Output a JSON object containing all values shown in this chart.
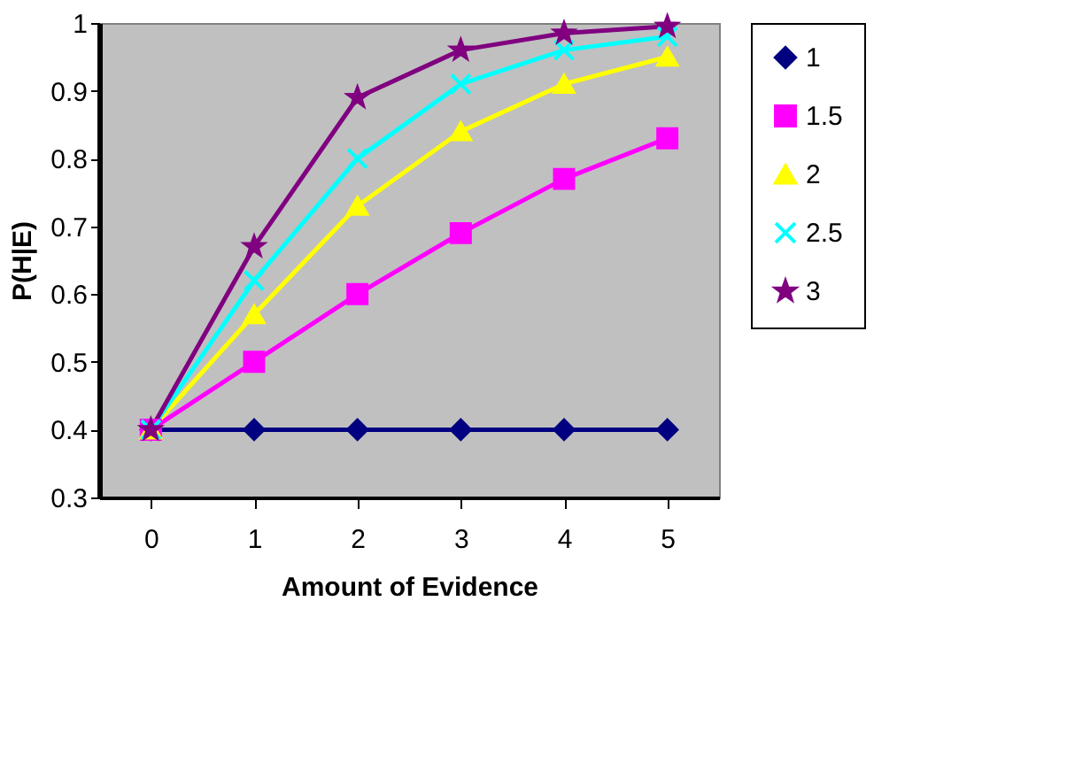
{
  "chart_data": {
    "type": "line",
    "xlabel": "Amount of Evidence",
    "ylabel": "P(H|E)",
    "categories": [
      "0",
      "1",
      "2",
      "3",
      "4",
      "5"
    ],
    "ylim": [
      0.3,
      1
    ],
    "yticks": [
      0.3,
      0.4,
      0.5,
      0.6,
      0.7,
      0.8,
      0.9,
      1
    ],
    "legend": "right",
    "series": [
      {
        "name": "1",
        "color": "#000080",
        "marker": "diamond",
        "values": [
          0.4,
          0.4,
          0.4,
          0.4,
          0.4,
          0.4
        ]
      },
      {
        "name": "1.5",
        "color": "#ff00ff",
        "marker": "square",
        "values": [
          0.4,
          0.5,
          0.6,
          0.69,
          0.77,
          0.83
        ]
      },
      {
        "name": "2",
        "color": "#ffff00",
        "marker": "triangle",
        "values": [
          0.4,
          0.57,
          0.73,
          0.84,
          0.91,
          0.95
        ]
      },
      {
        "name": "2.5",
        "color": "#00ffff",
        "marker": "cross",
        "values": [
          0.4,
          0.62,
          0.8,
          0.91,
          0.96,
          0.98
        ]
      },
      {
        "name": "3",
        "color": "#800080",
        "marker": "star",
        "values": [
          0.4,
          0.67,
          0.89,
          0.96,
          0.985,
          0.995
        ]
      }
    ]
  }
}
